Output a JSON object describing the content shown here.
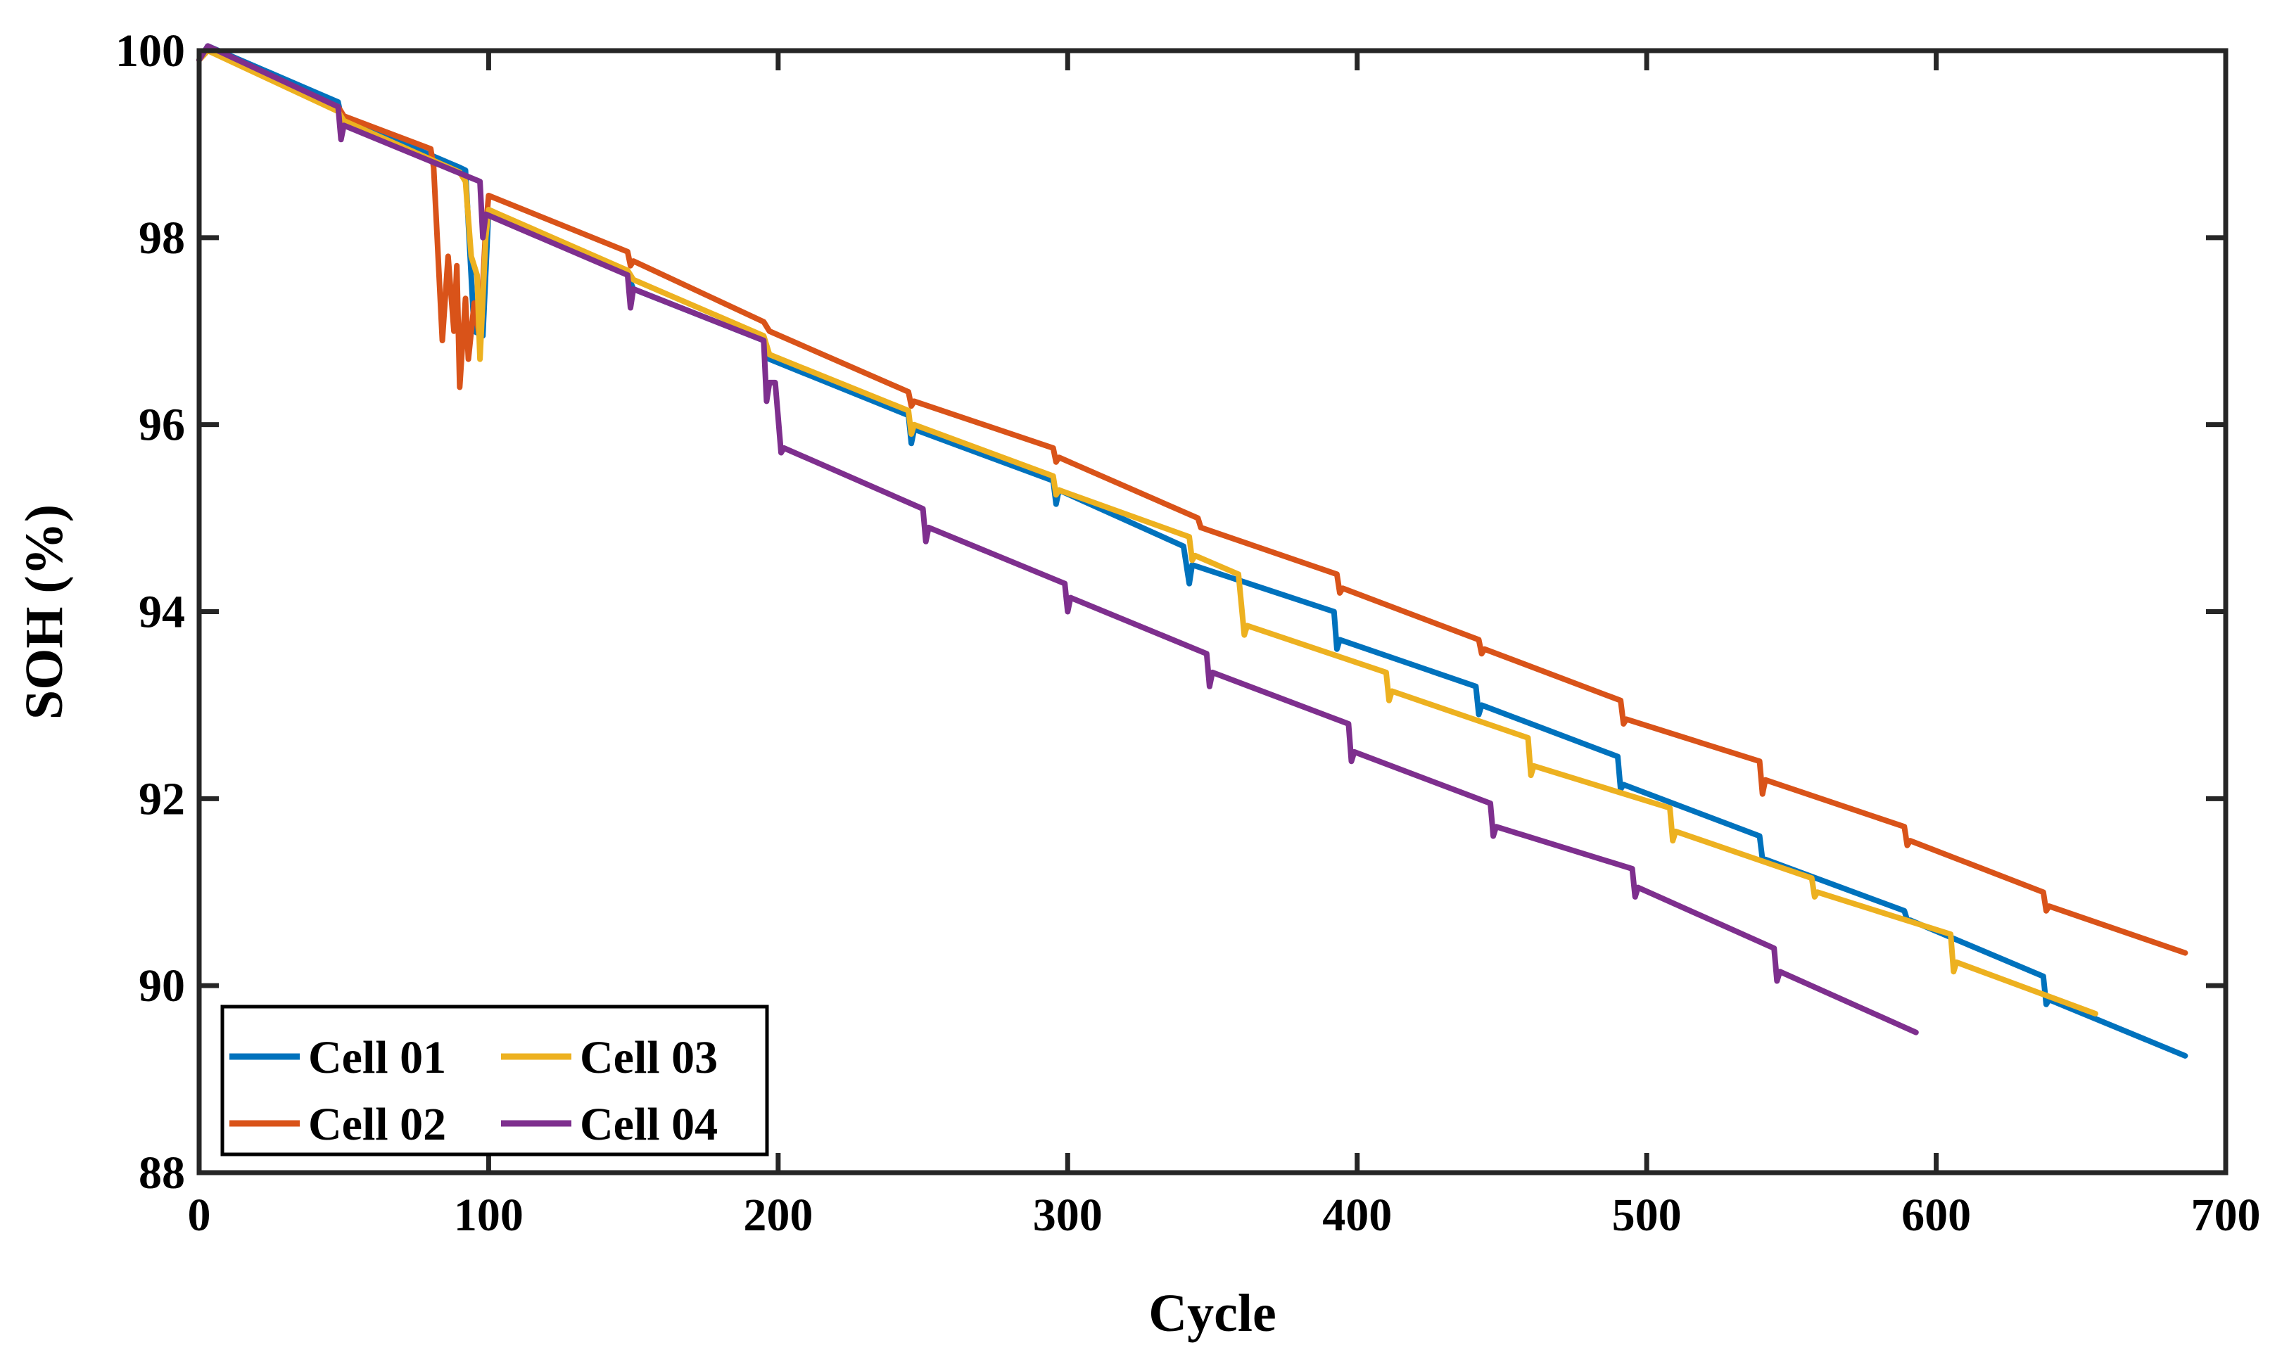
{
  "chart_data": {
    "type": "line",
    "title": "",
    "xlabel": "Cycle",
    "ylabel": "SOH (%)",
    "xlim": [
      0,
      700
    ],
    "ylim": [
      88,
      100
    ],
    "xticks": [
      0,
      100,
      200,
      300,
      400,
      500,
      600,
      700
    ],
    "yticks": [
      88,
      90,
      92,
      94,
      96,
      98,
      100
    ],
    "grid": false,
    "legend_position": "bottom-left",
    "series": [
      {
        "name": "Cell 01",
        "color": "#0072BD",
        "points": [
          [
            0,
            99.9
          ],
          [
            3,
            100.05
          ],
          [
            48,
            99.45
          ],
          [
            49,
            99.3
          ],
          [
            52,
            99.25
          ],
          [
            90,
            98.75
          ],
          [
            92,
            98.72
          ],
          [
            95,
            97.0
          ],
          [
            98,
            96.95
          ],
          [
            100,
            98.3
          ],
          [
            148,
            97.6
          ],
          [
            150,
            97.45
          ],
          [
            195,
            96.9
          ],
          [
            197,
            96.7
          ],
          [
            245,
            96.1
          ],
          [
            246,
            95.8
          ],
          [
            247,
            95.95
          ],
          [
            295,
            95.4
          ],
          [
            296,
            95.15
          ],
          [
            297,
            95.3
          ],
          [
            340,
            94.7
          ],
          [
            342,
            94.3
          ],
          [
            343,
            94.5
          ],
          [
            392,
            94.0
          ],
          [
            393,
            93.6
          ],
          [
            394,
            93.7
          ],
          [
            441,
            93.2
          ],
          [
            442,
            92.9
          ],
          [
            443,
            93.0
          ],
          [
            490,
            92.45
          ],
          [
            491,
            92.1
          ],
          [
            492,
            92.15
          ],
          [
            539,
            91.6
          ],
          [
            540,
            91.35
          ],
          [
            541,
            91.35
          ],
          [
            589,
            90.8
          ],
          [
            590,
            90.7
          ],
          [
            591,
            90.7
          ],
          [
            637,
            90.1
          ],
          [
            638,
            89.8
          ],
          [
            639,
            89.85
          ],
          [
            686,
            89.25
          ]
        ]
      },
      {
        "name": "Cell 02",
        "color": "#D95319",
        "points": [
          [
            0,
            99.9
          ],
          [
            3,
            100.0
          ],
          [
            48,
            99.4
          ],
          [
            50,
            99.3
          ],
          [
            80,
            98.95
          ],
          [
            81,
            98.75
          ],
          [
            84,
            96.9
          ],
          [
            86,
            97.8
          ],
          [
            88,
            97.0
          ],
          [
            89,
            97.7
          ],
          [
            90,
            96.4
          ],
          [
            92,
            97.35
          ],
          [
            93,
            96.7
          ],
          [
            95,
            97.3
          ],
          [
            97,
            96.9
          ],
          [
            99,
            98.1
          ],
          [
            100,
            98.45
          ],
          [
            148,
            97.85
          ],
          [
            149,
            97.7
          ],
          [
            150,
            97.75
          ],
          [
            195,
            97.1
          ],
          [
            197,
            97.0
          ],
          [
            245,
            96.35
          ],
          [
            246,
            96.2
          ],
          [
            247,
            96.25
          ],
          [
            295,
            95.75
          ],
          [
            296,
            95.6
          ],
          [
            297,
            95.65
          ],
          [
            345,
            95.0
          ],
          [
            346,
            94.9
          ],
          [
            393,
            94.4
          ],
          [
            394,
            94.2
          ],
          [
            395,
            94.25
          ],
          [
            442,
            93.7
          ],
          [
            443,
            93.55
          ],
          [
            444,
            93.6
          ],
          [
            491,
            93.05
          ],
          [
            492,
            92.8
          ],
          [
            493,
            92.85
          ],
          [
            539,
            92.4
          ],
          [
            540,
            92.05
          ],
          [
            541,
            92.2
          ],
          [
            589,
            91.7
          ],
          [
            590,
            91.5
          ],
          [
            591,
            91.55
          ],
          [
            637,
            91.0
          ],
          [
            638,
            90.8
          ],
          [
            639,
            90.85
          ],
          [
            686,
            90.35
          ]
        ]
      },
      {
        "name": "Cell 03",
        "color": "#EDB120",
        "points": [
          [
            0,
            99.9
          ],
          [
            3,
            100.0
          ],
          [
            48,
            99.35
          ],
          [
            50,
            99.25
          ],
          [
            90,
            98.7
          ],
          [
            92,
            98.6
          ],
          [
            94,
            97.8
          ],
          [
            96,
            97.6
          ],
          [
            97,
            96.7
          ],
          [
            99,
            98.0
          ],
          [
            100,
            98.3
          ],
          [
            148,
            97.65
          ],
          [
            150,
            97.55
          ],
          [
            195,
            96.95
          ],
          [
            197,
            96.75
          ],
          [
            245,
            96.15
          ],
          [
            246,
            95.9
          ],
          [
            247,
            96.0
          ],
          [
            295,
            95.45
          ],
          [
            296,
            95.25
          ],
          [
            297,
            95.3
          ],
          [
            342,
            94.8
          ],
          [
            343,
            94.55
          ],
          [
            344,
            94.6
          ],
          [
            359,
            94.4
          ],
          [
            361,
            93.75
          ],
          [
            362,
            93.85
          ],
          [
            410,
            93.35
          ],
          [
            411,
            93.05
          ],
          [
            412,
            93.15
          ],
          [
            459,
            92.65
          ],
          [
            460,
            92.25
          ],
          [
            461,
            92.35
          ],
          [
            508,
            91.9
          ],
          [
            509,
            91.55
          ],
          [
            510,
            91.65
          ],
          [
            557,
            91.15
          ],
          [
            558,
            90.95
          ],
          [
            559,
            91.0
          ],
          [
            605,
            90.55
          ],
          [
            606,
            90.15
          ],
          [
            607,
            90.25
          ],
          [
            655,
            89.7
          ]
        ]
      },
      {
        "name": "Cell 04",
        "color": "#7E2F8E",
        "points": [
          [
            0,
            99.9
          ],
          [
            3,
            100.05
          ],
          [
            48,
            99.4
          ],
          [
            49,
            99.05
          ],
          [
            50,
            99.2
          ],
          [
            97,
            98.6
          ],
          [
            98,
            98.0
          ],
          [
            99,
            98.25
          ],
          [
            148,
            97.6
          ],
          [
            149,
            97.25
          ],
          [
            150,
            97.45
          ],
          [
            195,
            96.9
          ],
          [
            196,
            96.25
          ],
          [
            197,
            96.45
          ],
          [
            199,
            96.45
          ],
          [
            201,
            95.7
          ],
          [
            202,
            95.75
          ],
          [
            250,
            95.1
          ],
          [
            251,
            94.75
          ],
          [
            252,
            94.9
          ],
          [
            299,
            94.3
          ],
          [
            300,
            94.0
          ],
          [
            301,
            94.15
          ],
          [
            348,
            93.55
          ],
          [
            349,
            93.2
          ],
          [
            350,
            93.35
          ],
          [
            397,
            92.8
          ],
          [
            398,
            92.4
          ],
          [
            399,
            92.5
          ],
          [
            446,
            91.95
          ],
          [
            447,
            91.6
          ],
          [
            448,
            91.7
          ],
          [
            495,
            91.25
          ],
          [
            496,
            90.95
          ],
          [
            497,
            91.05
          ],
          [
            544,
            90.4
          ],
          [
            545,
            90.05
          ],
          [
            546,
            90.15
          ],
          [
            593,
            89.5
          ]
        ]
      }
    ]
  }
}
